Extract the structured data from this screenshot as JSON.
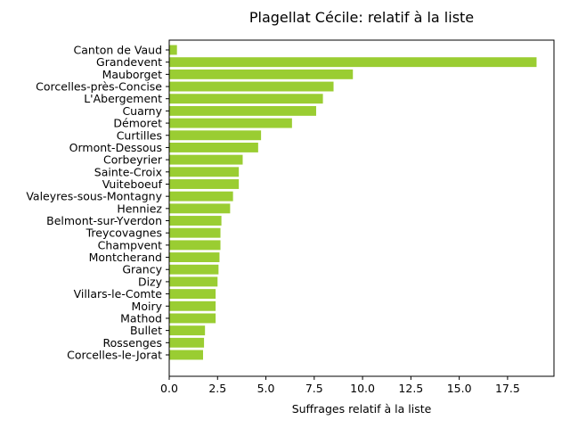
{
  "chart_data": {
    "type": "bar",
    "orientation": "horizontal",
    "title": "Plagellat Cécile: relatif à la liste",
    "xlabel": "Suffrages relatif à la liste",
    "ylabel": "",
    "xlim": [
      0,
      20
    ],
    "xticks": [
      0,
      2.5,
      5,
      7.5,
      10,
      12.5,
      15,
      17.5
    ],
    "xtick_labels": [
      "0.0",
      "2.5",
      "5.0",
      "7.5",
      "10.0",
      "12.5",
      "15.0",
      "17.5"
    ],
    "grid": false,
    "bar_color": "#9acd32",
    "categories": [
      "Canton de Vaud",
      "Grandevent",
      "Mauborget",
      "Corcelles-près-Concise",
      "L'Abergement",
      "Cuarny",
      "Démoret",
      "Curtilles",
      "Ormont-Dessous",
      "Corbeyrier",
      "Sainte-Croix",
      "Vuiteboeuf",
      "Valeyres-sous-Montagny",
      "Henniez",
      "Belmont-sur-Yverdon",
      "Treycovagnes",
      "Champvent",
      "Montcherand",
      "Grancy",
      "Dizy",
      "Villars-le-Comte",
      "Moiry",
      "Mathod",
      "Bullet",
      "Rossenges",
      "Corcelles-le-Jorat"
    ],
    "values": [
      0.4,
      19.0,
      9.5,
      8.5,
      7.95,
      7.6,
      6.35,
      4.75,
      4.6,
      3.8,
      3.6,
      3.6,
      3.3,
      3.15,
      2.7,
      2.65,
      2.65,
      2.6,
      2.55,
      2.5,
      2.4,
      2.4,
      2.4,
      1.85,
      1.8,
      1.75
    ]
  }
}
